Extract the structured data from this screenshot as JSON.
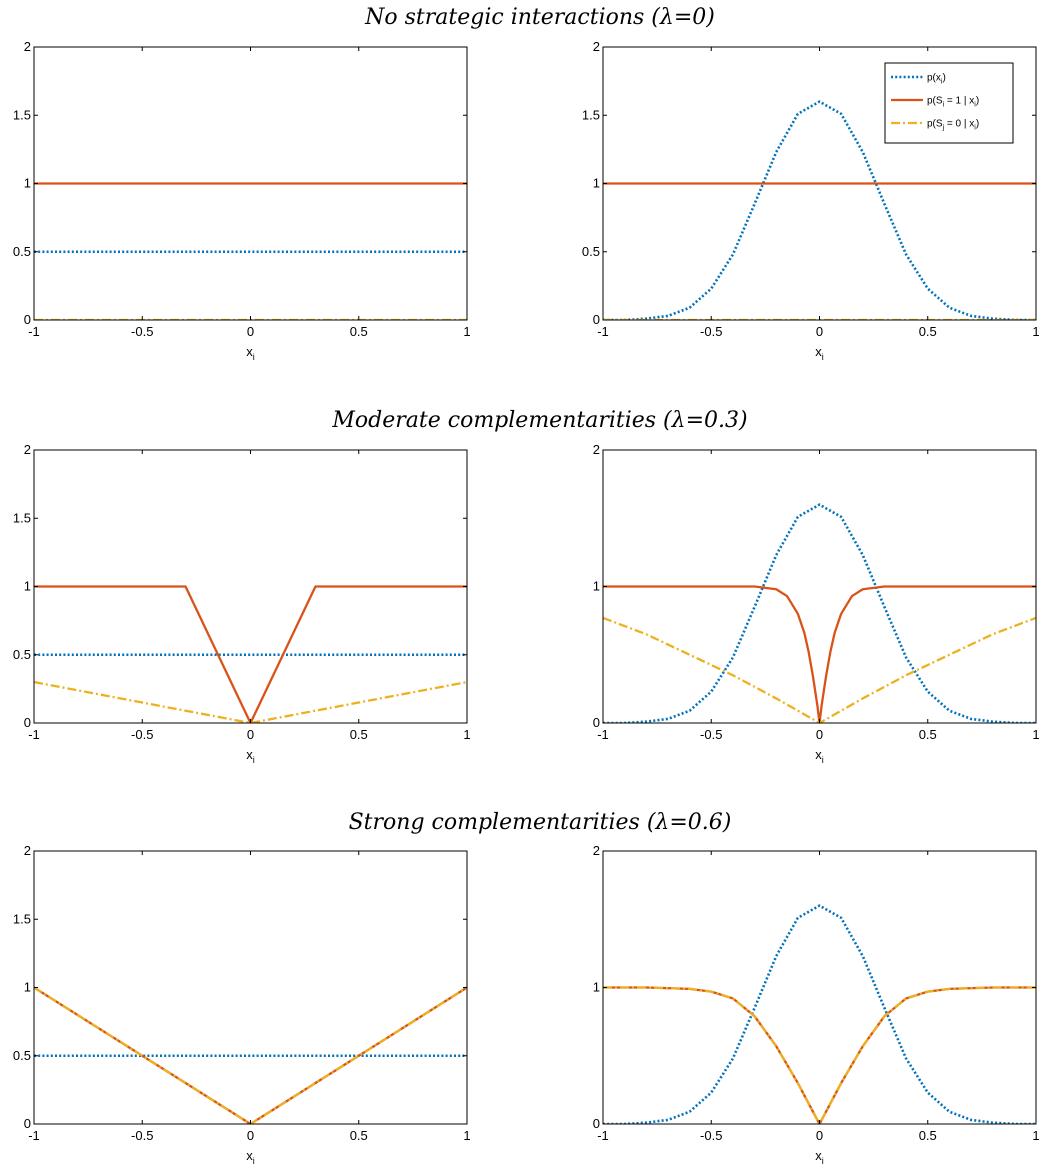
{
  "colors": {
    "px": "#0072BD",
    "s1": "#D95319",
    "s0": "#EDB120",
    "axis": "#000000"
  },
  "legend": {
    "items": [
      {
        "key": "px",
        "base": "p(x",
        "sub": "i",
        "tail": ")",
        "style": "dotted"
      },
      {
        "key": "s1",
        "base": "p(S",
        "sub": "i",
        "mid": " = 1 | x",
        "sub2": "i",
        "tail": ")",
        "style": "solid"
      },
      {
        "key": "s0",
        "base": "p(S",
        "sub": "j",
        "mid": " = 0 | x",
        "sub2": "i",
        "tail": ")",
        "style": "dashdot"
      }
    ]
  },
  "chart_data": {
    "rows": [
      {
        "title": "No strategic interactions (λ=0)",
        "lambda": 0,
        "panels": [
          {
            "type": "line",
            "xlabel": "x",
            "xlabel_sub": "i",
            "xlim": [
              -1,
              1
            ],
            "ylim": [
              0,
              2
            ],
            "xticks": [
              -1,
              -0.5,
              0,
              0.5,
              1
            ],
            "yticks": [
              0,
              0.5,
              1,
              1.5,
              2
            ],
            "legend": false,
            "series": [
              {
                "key": "px",
                "x": [
                  -1,
                  1
                ],
                "y": [
                  0.5,
                  0.5
                ]
              },
              {
                "key": "s1",
                "x": [
                  -1,
                  1
                ],
                "y": [
                  1,
                  1
                ]
              },
              {
                "key": "s0",
                "x": [
                  -1,
                  1
                ],
                "y": [
                  0,
                  0
                ]
              }
            ]
          },
          {
            "type": "line",
            "xlabel": "x",
            "xlabel_sub": "i",
            "xlim": [
              -1,
              1
            ],
            "ylim": [
              0,
              2
            ],
            "xticks": [
              -1,
              -0.5,
              0,
              0.5,
              1
            ],
            "yticks": [
              0,
              0.5,
              1,
              1.5,
              2
            ],
            "legend": true,
            "series": [
              {
                "key": "px",
                "x": [
                  -1,
                  -0.9,
                  -0.8,
                  -0.7,
                  -0.6,
                  -0.5,
                  -0.4,
                  -0.3,
                  -0.2,
                  -0.1,
                  0,
                  0.1,
                  0.2,
                  0.3,
                  0.4,
                  0.5,
                  0.6,
                  0.7,
                  0.8,
                  0.9,
                  1
                ],
                "y": [
                  0.0,
                  0.0,
                  0.01,
                  0.03,
                  0.09,
                  0.23,
                  0.48,
                  0.85,
                  1.23,
                  1.51,
                  1.6,
                  1.51,
                  1.23,
                  0.85,
                  0.48,
                  0.23,
                  0.09,
                  0.03,
                  0.01,
                  0.0,
                  0.0
                ]
              },
              {
                "key": "s1",
                "x": [
                  -1,
                  1
                ],
                "y": [
                  1,
                  1
                ]
              },
              {
                "key": "s0",
                "x": [
                  -1,
                  1
                ],
                "y": [
                  0,
                  0
                ]
              }
            ]
          }
        ]
      },
      {
        "title": "Moderate complementarities (λ=0.3)",
        "lambda": 0.3,
        "panels": [
          {
            "type": "line",
            "xlabel": "x",
            "xlabel_sub": "i",
            "xlim": [
              -1,
              1
            ],
            "ylim": [
              0,
              2
            ],
            "xticks": [
              -1,
              -0.5,
              0,
              0.5,
              1
            ],
            "yticks": [
              0,
              0.5,
              1,
              1.5,
              2
            ],
            "legend": false,
            "series": [
              {
                "key": "px",
                "x": [
                  -1,
                  1
                ],
                "y": [
                  0.5,
                  0.5
                ]
              },
              {
                "key": "s1",
                "x": [
                  -1,
                  -0.3,
                  0,
                  0.3,
                  1
                ],
                "y": [
                  1,
                  1,
                  0,
                  1,
                  1
                ]
              },
              {
                "key": "s0",
                "x": [
                  -1,
                  0,
                  1
                ],
                "y": [
                  0.3,
                  0,
                  0.3
                ]
              }
            ]
          },
          {
            "type": "line",
            "xlabel": "x",
            "xlabel_sub": "i",
            "xlim": [
              -1,
              1
            ],
            "ylim": [
              0,
              2
            ],
            "xticks": [
              -1,
              -0.5,
              0,
              0.5,
              1
            ],
            "yticks": [
              0,
              1,
              2
            ],
            "legend": false,
            "series": [
              {
                "key": "px",
                "x": [
                  -1,
                  -0.9,
                  -0.8,
                  -0.7,
                  -0.6,
                  -0.5,
                  -0.4,
                  -0.3,
                  -0.2,
                  -0.1,
                  0,
                  0.1,
                  0.2,
                  0.3,
                  0.4,
                  0.5,
                  0.6,
                  0.7,
                  0.8,
                  0.9,
                  1
                ],
                "y": [
                  0.0,
                  0.0,
                  0.01,
                  0.03,
                  0.09,
                  0.23,
                  0.48,
                  0.85,
                  1.23,
                  1.51,
                  1.6,
                  1.51,
                  1.23,
                  0.85,
                  0.48,
                  0.23,
                  0.09,
                  0.03,
                  0.01,
                  0.0,
                  0.0
                ]
              },
              {
                "key": "s1",
                "x": [
                  -1,
                  -0.5,
                  -0.3,
                  -0.25,
                  -0.2,
                  -0.15,
                  -0.1,
                  -0.07,
                  -0.05,
                  -0.03,
                  -0.01,
                  0,
                  0.01,
                  0.03,
                  0.05,
                  0.07,
                  0.1,
                  0.15,
                  0.2,
                  0.25,
                  0.3,
                  0.5,
                  1
                ],
                "y": [
                  1,
                  1,
                  1,
                  0.99,
                  0.98,
                  0.93,
                  0.8,
                  0.66,
                  0.52,
                  0.34,
                  0.13,
                  0,
                  0.13,
                  0.34,
                  0.52,
                  0.66,
                  0.8,
                  0.93,
                  0.98,
                  0.99,
                  1,
                  1,
                  1
                ]
              },
              {
                "key": "s0",
                "x": [
                  -1,
                  -0.8,
                  -0.6,
                  -0.4,
                  -0.2,
                  0,
                  0.2,
                  0.4,
                  0.6,
                  0.8,
                  1
                ],
                "y": [
                  0.77,
                  0.65,
                  0.5,
                  0.35,
                  0.18,
                  0,
                  0.18,
                  0.35,
                  0.5,
                  0.65,
                  0.77
                ]
              }
            ]
          }
        ]
      },
      {
        "title": "Strong complementarities (λ=0.6)",
        "lambda": 0.6,
        "panels": [
          {
            "type": "line",
            "xlabel": "x",
            "xlabel_sub": "i",
            "xlim": [
              -1,
              1
            ],
            "ylim": [
              0,
              2
            ],
            "xticks": [
              -1,
              -0.5,
              0,
              0.5,
              1
            ],
            "yticks": [
              0,
              0.5,
              1,
              1.5,
              2
            ],
            "legend": false,
            "series": [
              {
                "key": "px",
                "x": [
                  -1,
                  1
                ],
                "y": [
                  0.5,
                  0.5
                ]
              },
              {
                "key": "s1",
                "x": [
                  -1,
                  0,
                  1
                ],
                "y": [
                  1,
                  0,
                  1
                ]
              },
              {
                "key": "s0",
                "x": [
                  -1,
                  0,
                  1
                ],
                "y": [
                  1,
                  0,
                  1
                ]
              }
            ]
          },
          {
            "type": "line",
            "xlabel": "x",
            "xlabel_sub": "i",
            "xlim": [
              -1,
              1
            ],
            "ylim": [
              0,
              2
            ],
            "xticks": [
              -1,
              -0.5,
              0,
              0.5,
              1
            ],
            "yticks": [
              0,
              1,
              2
            ],
            "legend": false,
            "series": [
              {
                "key": "px",
                "x": [
                  -1,
                  -0.9,
                  -0.8,
                  -0.7,
                  -0.6,
                  -0.5,
                  -0.4,
                  -0.3,
                  -0.2,
                  -0.1,
                  0,
                  0.1,
                  0.2,
                  0.3,
                  0.4,
                  0.5,
                  0.6,
                  0.7,
                  0.8,
                  0.9,
                  1
                ],
                "y": [
                  0.0,
                  0.0,
                  0.01,
                  0.03,
                  0.09,
                  0.23,
                  0.48,
                  0.85,
                  1.23,
                  1.51,
                  1.6,
                  1.51,
                  1.23,
                  0.85,
                  0.48,
                  0.23,
                  0.09,
                  0.03,
                  0.01,
                  0.0,
                  0.0
                ]
              },
              {
                "key": "s1",
                "x": [
                  -1,
                  -0.8,
                  -0.6,
                  -0.5,
                  -0.4,
                  -0.3,
                  -0.2,
                  -0.1,
                  -0.05,
                  0,
                  0.05,
                  0.1,
                  0.2,
                  0.3,
                  0.4,
                  0.5,
                  0.6,
                  0.8,
                  1
                ],
                "y": [
                  1,
                  1,
                  0.99,
                  0.97,
                  0.92,
                  0.79,
                  0.57,
                  0.3,
                  0.15,
                  0,
                  0.15,
                  0.3,
                  0.57,
                  0.79,
                  0.92,
                  0.97,
                  0.99,
                  1,
                  1
                ]
              },
              {
                "key": "s0",
                "x": [
                  -1,
                  -0.8,
                  -0.6,
                  -0.5,
                  -0.4,
                  -0.3,
                  -0.2,
                  -0.1,
                  -0.05,
                  0,
                  0.05,
                  0.1,
                  0.2,
                  0.3,
                  0.4,
                  0.5,
                  0.6,
                  0.8,
                  1
                ],
                "y": [
                  1,
                  1,
                  0.99,
                  0.97,
                  0.92,
                  0.79,
                  0.57,
                  0.3,
                  0.15,
                  0,
                  0.15,
                  0.3,
                  0.57,
                  0.79,
                  0.92,
                  0.97,
                  0.99,
                  1,
                  1
                ]
              }
            ]
          }
        ]
      }
    ]
  }
}
